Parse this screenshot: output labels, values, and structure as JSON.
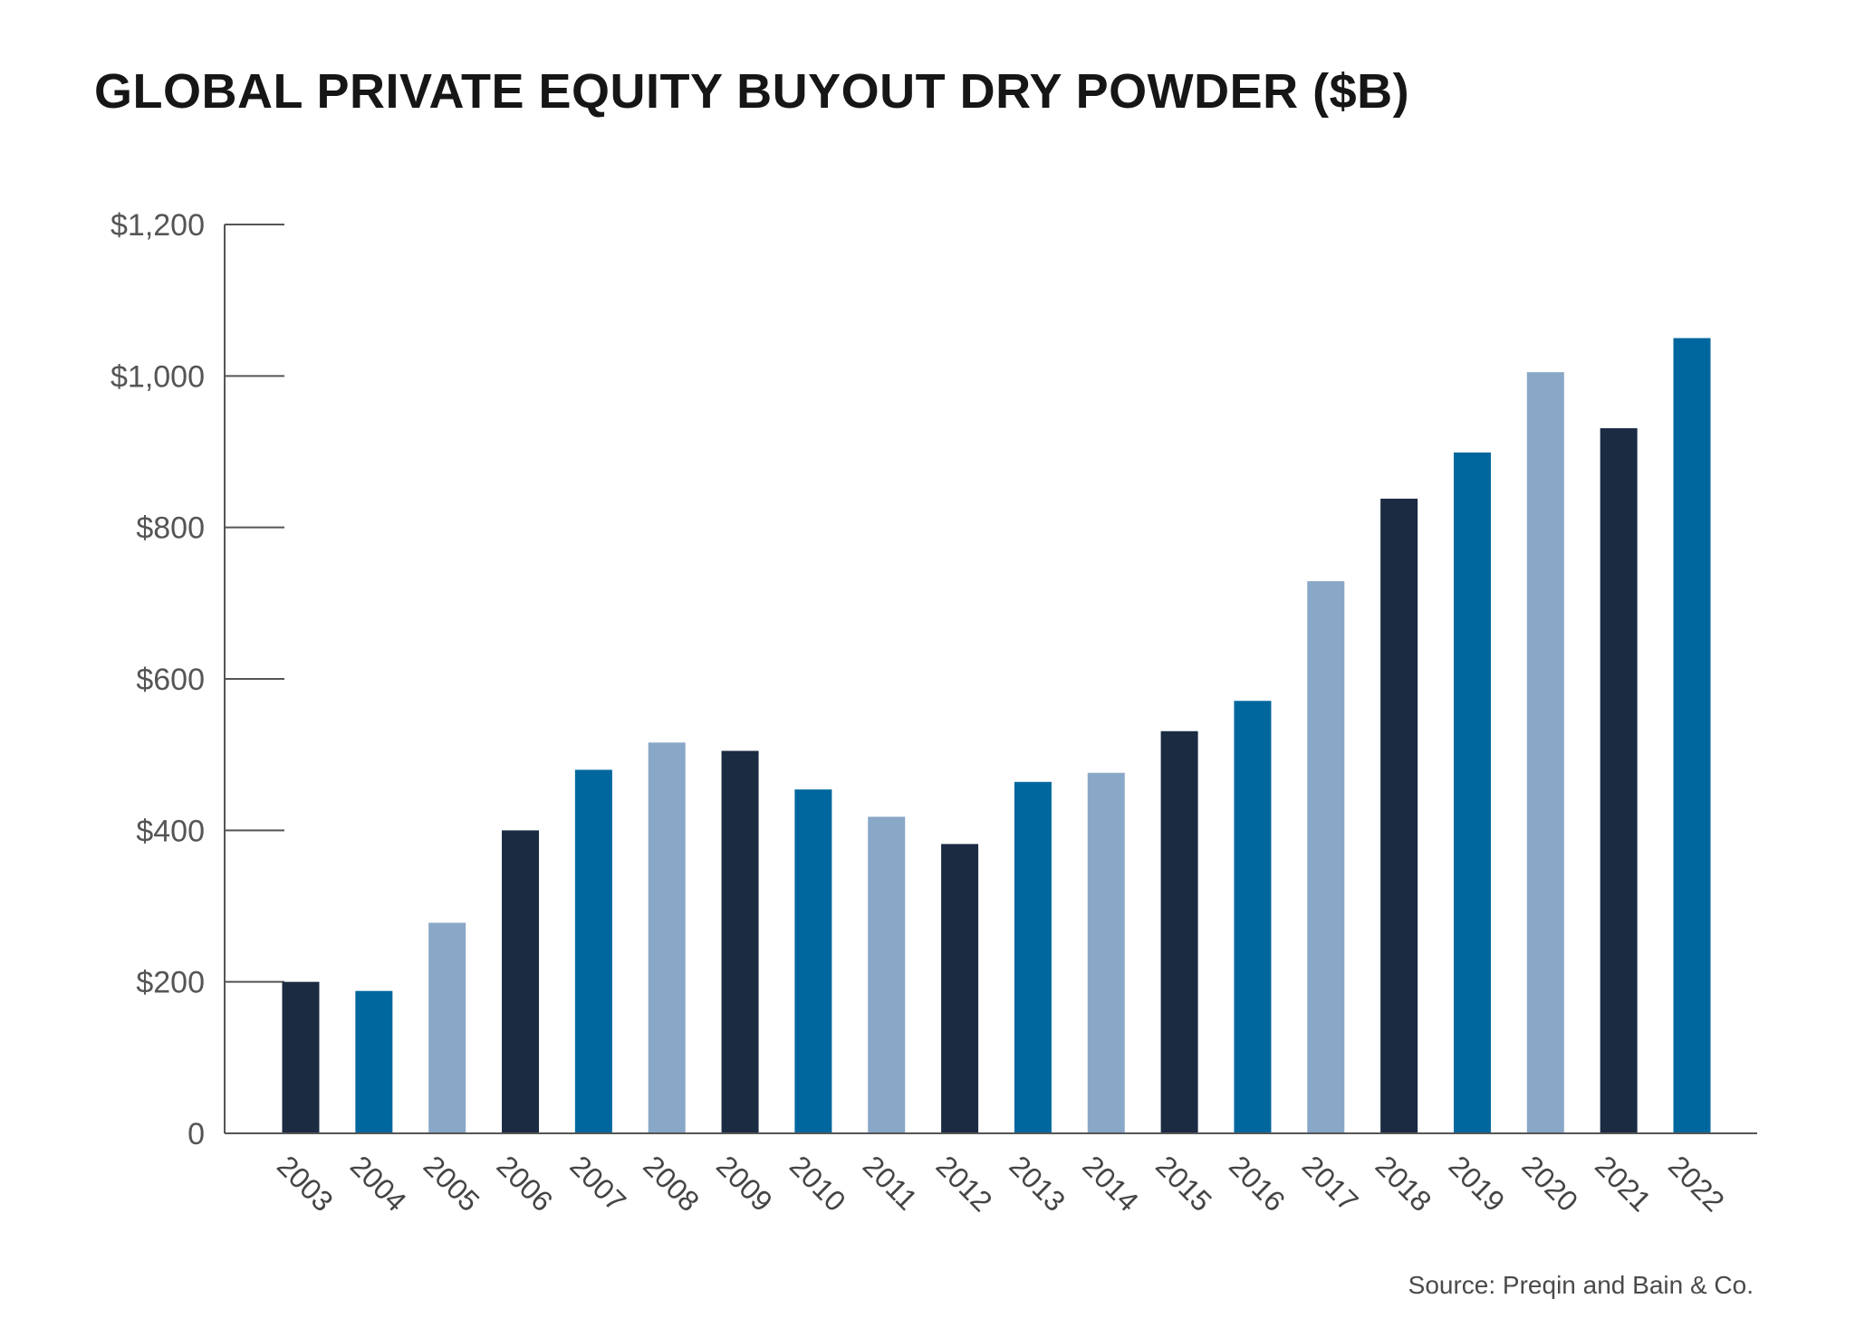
{
  "chart_data": {
    "type": "bar",
    "title": "GLOBAL PRIVATE EQUITY BUYOUT DRY POWDER ($B)",
    "xlabel": "",
    "ylabel": "",
    "categories": [
      "2003",
      "2004",
      "2005",
      "2006",
      "2007",
      "2008",
      "2009",
      "2010",
      "2011",
      "2012",
      "2013",
      "2014",
      "2015",
      "2016",
      "2017",
      "2018",
      "2019",
      "2020",
      "2021",
      "2022"
    ],
    "values": [
      200,
      188,
      278,
      400,
      480,
      516,
      505,
      454,
      418,
      382,
      464,
      476,
      531,
      571,
      729,
      838,
      899,
      1005,
      931,
      1050
    ],
    "ylim": [
      0,
      1200
    ],
    "yticks": [
      0,
      200,
      400,
      600,
      800,
      1000,
      1200
    ],
    "ytick_labels": [
      "0",
      "$200",
      "$400",
      "$600",
      "$800",
      "$1,000",
      "$1,200"
    ],
    "grid": false,
    "bar_colors": [
      "#1a2b42",
      "#00679e",
      "#89a7c7"
    ],
    "source": "Source: Preqin and Bain & Co."
  }
}
